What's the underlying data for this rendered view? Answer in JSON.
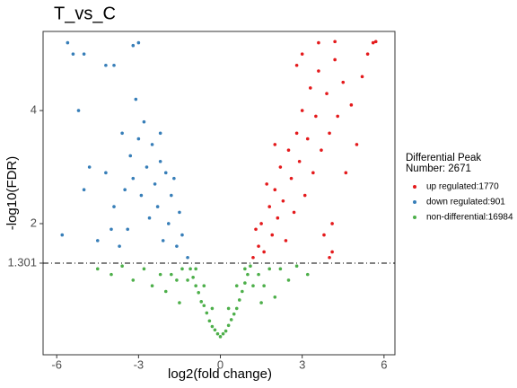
{
  "chart_data": {
    "type": "scatter",
    "title": "T_vs_C",
    "x_label": "log2(fold change)",
    "y_label": "-log10(FDR)",
    "xlim": [
      -6.5,
      6.4
    ],
    "ylim": [
      -0.32,
      5.4
    ],
    "xticks": [
      -6,
      -3,
      0,
      3,
      6
    ],
    "yticks": [
      1.301,
      2,
      4
    ],
    "legend_title": [
      "Differential Peak",
      "Number: 2671"
    ],
    "series": [
      {
        "name": "up regulated:1770",
        "color": "#e41a1c",
        "x": [
          1.2,
          1.4,
          1.5,
          1.6,
          1.8,
          1.9,
          2.0,
          2.1,
          2.2,
          2.3,
          2.4,
          2.5,
          2.6,
          2.7,
          2.8,
          2.9,
          3.0,
          3.1,
          3.2,
          3.3,
          3.4,
          3.5,
          3.6,
          3.7,
          3.8,
          3.9,
          4.0,
          4.1,
          4.2,
          4.3,
          4.5,
          4.6,
          4.8,
          5.0,
          5.2,
          5.4,
          5.6,
          5.7,
          4.2,
          3.6,
          2.8,
          3.0,
          1.3,
          1.7,
          2.0,
          4.0,
          4.1
        ],
        "values": [
          1.4,
          1.6,
          2.0,
          1.5,
          2.3,
          1.8,
          2.6,
          2.1,
          3.0,
          2.4,
          1.7,
          3.3,
          2.8,
          2.2,
          3.6,
          3.1,
          4.0,
          2.5,
          3.5,
          4.4,
          2.9,
          3.9,
          4.7,
          3.3,
          1.8,
          4.3,
          3.6,
          2.0,
          4.9,
          3.9,
          4.5,
          2.9,
          4.1,
          3.4,
          4.6,
          5.0,
          5.2,
          5.22,
          5.22,
          5.2,
          4.8,
          5.0,
          1.9,
          2.7,
          3.4,
          1.4,
          1.5
        ]
      },
      {
        "name": "down regulated:901",
        "color": "#377eb8",
        "x": [
          -1.2,
          -1.4,
          -1.5,
          -1.6,
          -1.8,
          -1.9,
          -2.0,
          -2.1,
          -2.2,
          -2.3,
          -2.4,
          -2.5,
          -2.6,
          -2.7,
          -2.8,
          -2.9,
          -3.0,
          -3.1,
          -3.2,
          -3.3,
          -3.4,
          -3.5,
          -3.6,
          -3.7,
          -3.9,
          -4.0,
          -4.2,
          -4.5,
          -4.8,
          -5.0,
          -5.2,
          -5.4,
          -5.6,
          -5.8,
          -5.0,
          -3.0,
          -3.2,
          -3.9,
          -4.2,
          -2.2,
          -1.7
        ],
        "values": [
          1.4,
          1.8,
          2.2,
          1.6,
          2.5,
          2.0,
          2.9,
          1.7,
          3.1,
          2.3,
          2.7,
          3.4,
          2.1,
          3.0,
          3.8,
          2.5,
          3.5,
          4.2,
          2.8,
          3.2,
          1.9,
          2.6,
          3.6,
          1.6,
          2.3,
          1.9,
          2.9,
          1.7,
          3.0,
          2.6,
          4.0,
          5.0,
          5.2,
          1.8,
          5.0,
          5.2,
          5.15,
          4.8,
          4.8,
          3.6,
          2.8
        ]
      },
      {
        "name": "non-differential:16984",
        "color": "#4daf4a",
        "x": [
          0,
          0.1,
          -0.1,
          0.2,
          -0.2,
          0.3,
          -0.3,
          0.4,
          -0.4,
          0.5,
          -0.5,
          0.6,
          -0.6,
          0.7,
          -0.7,
          0.8,
          -0.8,
          0.9,
          -0.9,
          1.0,
          -1.0,
          1.1,
          -1.1,
          1.2,
          -1.2,
          1.4,
          -1.4,
          1.6,
          -1.6,
          1.8,
          -1.8,
          2.0,
          -2.0,
          2.2,
          -2.2,
          2.5,
          -2.5,
          2.8,
          -2.8,
          3.2,
          -3.2,
          -3.6,
          -4.0,
          -4.5,
          0.3,
          -0.3,
          0.6,
          -0.6,
          1.5,
          -1.5,
          0.9,
          -0.9
        ],
        "values": [
          0,
          0.05,
          0.05,
          0.1,
          0.12,
          0.2,
          0.18,
          0.3,
          0.28,
          0.4,
          0.42,
          0.5,
          0.55,
          0.65,
          0.62,
          0.8,
          0.78,
          0.95,
          0.9,
          1.1,
          1.05,
          1.25,
          1.2,
          0.9,
          1.0,
          1.1,
          1.2,
          0.9,
          1.0,
          1.2,
          1.1,
          0.7,
          0.8,
          1.2,
          1.1,
          1.0,
          0.9,
          1.25,
          1.2,
          1.1,
          1.0,
          1.25,
          1.1,
          1.2,
          0.5,
          0.5,
          0.9,
          0.9,
          0.6,
          0.6,
          1.2,
          1.2
        ]
      }
    ]
  }
}
